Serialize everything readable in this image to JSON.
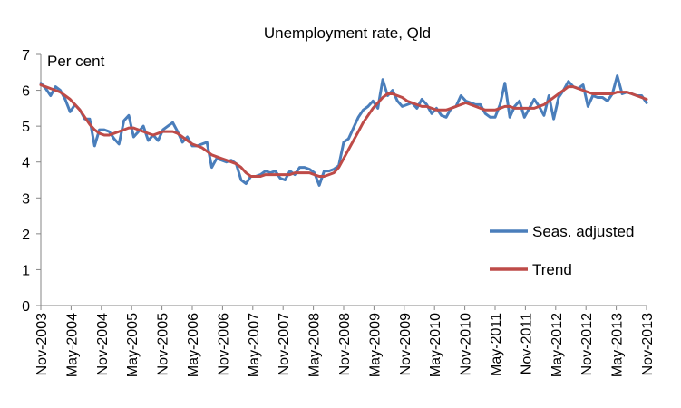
{
  "chart_data": {
    "type": "line",
    "title": "Unemployment rate, Qld",
    "unit_label": "Per cent",
    "xlabel": "",
    "ylabel": "",
    "ylim": [
      0,
      7
    ],
    "yticks": [
      0,
      1,
      2,
      3,
      4,
      5,
      6,
      7
    ],
    "x_tick_labels": [
      "Nov-2003",
      "May-2004",
      "Nov-2004",
      "May-2005",
      "Nov-2005",
      "May-2006",
      "Nov-2006",
      "May-2007",
      "Nov-2007",
      "May-2008",
      "Nov-2008",
      "May-2009",
      "Nov-2009",
      "May-2010",
      "Nov-2010",
      "May-2011",
      "Nov-2011",
      "May-2012",
      "Nov-2012",
      "May-2013",
      "Nov-2013"
    ],
    "x_start": "Nov-2003",
    "x_end": "Nov-2013",
    "grid": false,
    "legend_position": "right",
    "series": [
      {
        "name": "Seas. adjusted",
        "color": "#4a7ebb",
        "values": [
          6.2,
          6.05,
          5.85,
          6.1,
          6.0,
          5.75,
          5.4,
          5.6,
          5.45,
          5.2,
          5.2,
          4.45,
          4.9,
          4.9,
          4.85,
          4.65,
          4.5,
          5.15,
          5.3,
          4.7,
          4.85,
          5.0,
          4.6,
          4.75,
          4.6,
          4.9,
          5.0,
          5.1,
          4.85,
          4.55,
          4.7,
          4.45,
          4.45,
          4.5,
          4.55,
          3.85,
          4.1,
          4.05,
          4.0,
          4.05,
          3.95,
          3.5,
          3.4,
          3.6,
          3.6,
          3.65,
          3.75,
          3.7,
          3.75,
          3.55,
          3.5,
          3.75,
          3.65,
          3.85,
          3.85,
          3.8,
          3.7,
          3.35,
          3.75,
          3.75,
          3.8,
          3.9,
          4.55,
          4.65,
          4.95,
          5.25,
          5.45,
          5.55,
          5.7,
          5.5,
          6.3,
          5.85,
          6.0,
          5.7,
          5.55,
          5.6,
          5.65,
          5.5,
          5.75,
          5.6,
          5.35,
          5.5,
          5.3,
          5.25,
          5.5,
          5.55,
          5.85,
          5.7,
          5.65,
          5.6,
          5.6,
          5.35,
          5.25,
          5.25,
          5.6,
          6.2,
          5.25,
          5.55,
          5.7,
          5.25,
          5.5,
          5.75,
          5.55,
          5.3,
          5.85,
          5.2,
          5.8,
          6.0,
          6.25,
          6.1,
          6.05,
          6.15,
          5.55,
          5.85,
          5.8,
          5.8,
          5.7,
          5.9,
          6.4,
          5.9,
          5.95,
          5.9,
          5.85,
          5.85,
          5.65
        ]
      },
      {
        "name": "Trend",
        "color": "#be4b48",
        "values": [
          6.15,
          6.1,
          6.05,
          6.0,
          5.95,
          5.85,
          5.75,
          5.6,
          5.45,
          5.25,
          5.05,
          4.9,
          4.8,
          4.75,
          4.75,
          4.8,
          4.85,
          4.9,
          4.95,
          4.95,
          4.9,
          4.85,
          4.8,
          4.75,
          4.8,
          4.85,
          4.85,
          4.85,
          4.8,
          4.7,
          4.6,
          4.5,
          4.45,
          4.4,
          4.3,
          4.2,
          4.15,
          4.1,
          4.05,
          4.0,
          3.95,
          3.85,
          3.7,
          3.6,
          3.6,
          3.6,
          3.65,
          3.65,
          3.65,
          3.65,
          3.65,
          3.65,
          3.7,
          3.7,
          3.7,
          3.7,
          3.65,
          3.6,
          3.6,
          3.65,
          3.7,
          3.85,
          4.1,
          4.35,
          4.6,
          4.85,
          5.1,
          5.3,
          5.5,
          5.65,
          5.8,
          5.9,
          5.9,
          5.85,
          5.8,
          5.7,
          5.65,
          5.6,
          5.55,
          5.55,
          5.5,
          5.45,
          5.45,
          5.45,
          5.5,
          5.55,
          5.6,
          5.65,
          5.6,
          5.55,
          5.5,
          5.45,
          5.45,
          5.45,
          5.5,
          5.55,
          5.55,
          5.5,
          5.5,
          5.5,
          5.5,
          5.5,
          5.55,
          5.6,
          5.7,
          5.8,
          5.9,
          6.0,
          6.1,
          6.1,
          6.05,
          6.0,
          5.95,
          5.9,
          5.9,
          5.9,
          5.9,
          5.9,
          5.95,
          5.95,
          5.95,
          5.9,
          5.85,
          5.8,
          5.75
        ]
      }
    ]
  }
}
